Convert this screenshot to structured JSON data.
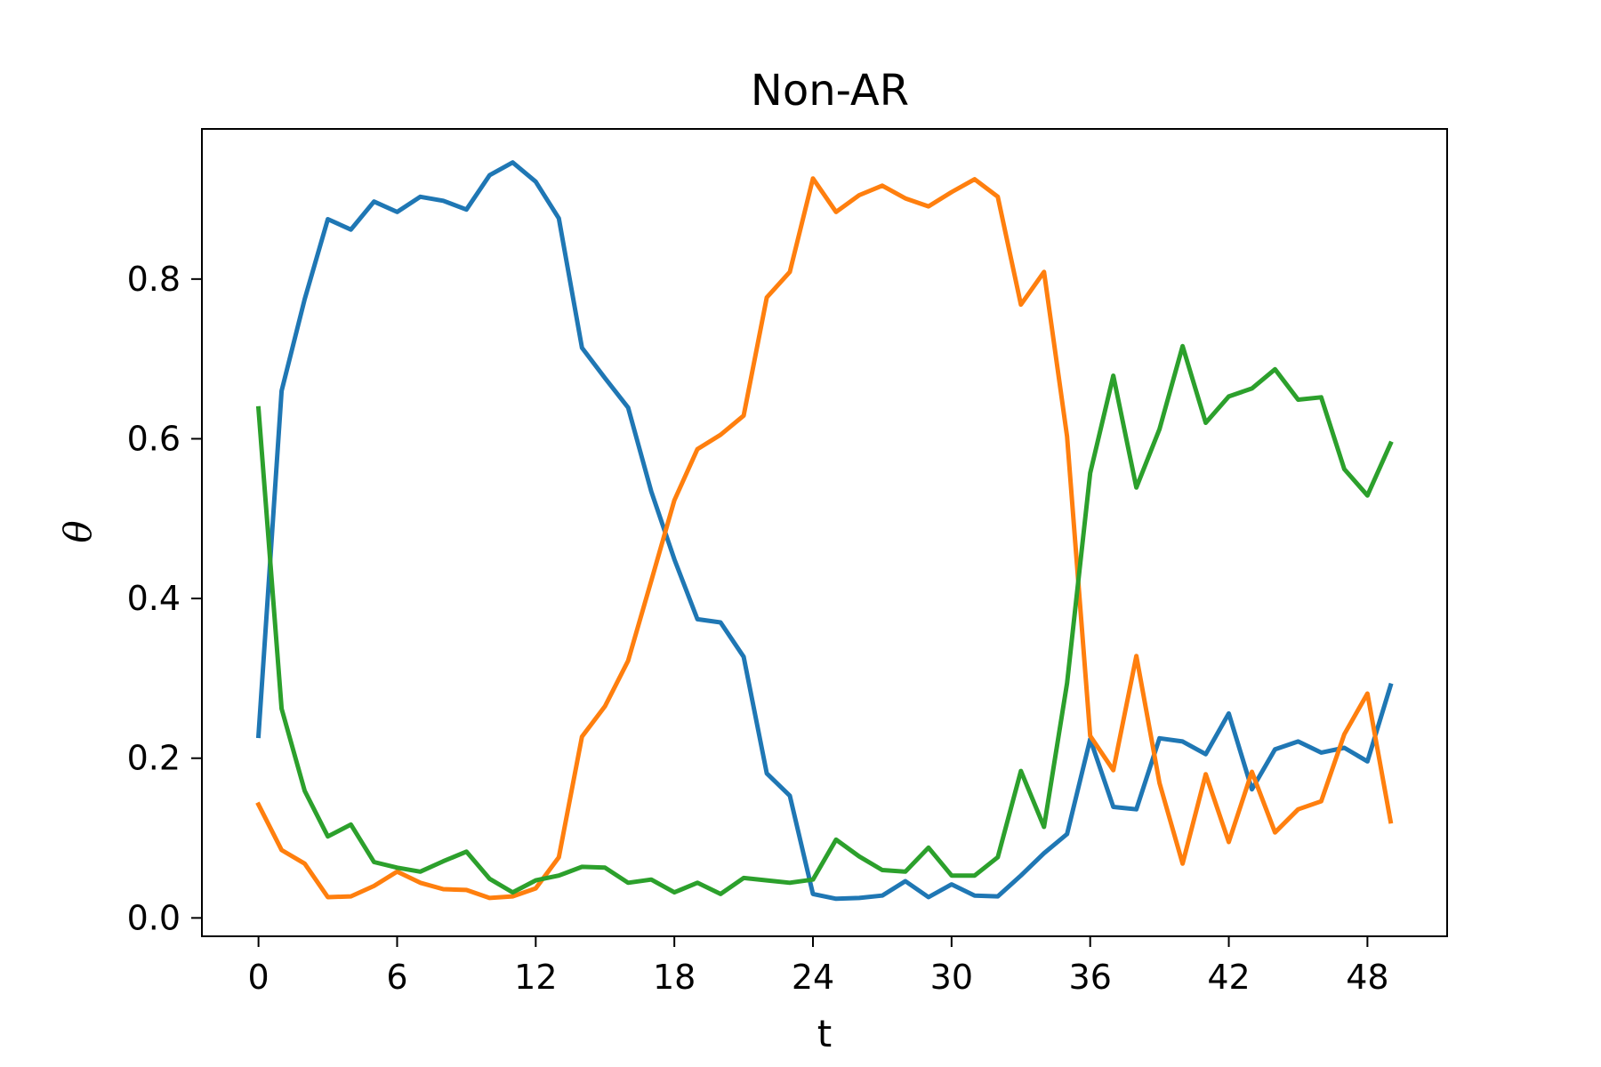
{
  "chart_data": {
    "type": "line",
    "title": "Non-AR",
    "xlabel": "t",
    "ylabel": "θ",
    "xlim": [
      -2.45,
      51.45
    ],
    "ylim": [
      -0.023,
      0.988
    ],
    "xticks": [
      0,
      6,
      12,
      18,
      24,
      30,
      36,
      42,
      48
    ],
    "xtick_labels": [
      "0",
      "6",
      "12",
      "18",
      "24",
      "30",
      "36",
      "42",
      "48"
    ],
    "yticks": [
      0.0,
      0.2,
      0.4,
      0.6,
      0.8
    ],
    "ytick_labels": [
      "0.0",
      "0.2",
      "0.4",
      "0.6",
      "0.8"
    ],
    "grid": false,
    "legend": "none",
    "x": [
      0,
      1,
      2,
      3,
      4,
      5,
      6,
      7,
      8,
      9,
      10,
      11,
      12,
      13,
      14,
      15,
      16,
      17,
      18,
      19,
      20,
      21,
      22,
      23,
      24,
      25,
      26,
      27,
      28,
      29,
      30,
      31,
      32,
      33,
      34,
      35,
      36,
      37,
      38,
      39,
      40,
      41,
      42,
      43,
      44,
      45,
      46,
      47,
      48,
      49
    ],
    "series": [
      {
        "color": "#1f77b4",
        "values": [
          0.228,
          0.66,
          0.775,
          0.875,
          0.862,
          0.897,
          0.884,
          0.903,
          0.898,
          0.887,
          0.93,
          0.946,
          0.922,
          0.876,
          0.714,
          0.676,
          0.639,
          0.534,
          0.449,
          0.374,
          0.37,
          0.327,
          0.181,
          0.153,
          0.03,
          0.024,
          0.025,
          0.028,
          0.046,
          0.026,
          0.042,
          0.028,
          0.027,
          0.053,
          0.081,
          0.105,
          0.224,
          0.139,
          0.136,
          0.225,
          0.221,
          0.205,
          0.256,
          0.161,
          0.211,
          0.221,
          0.207,
          0.213,
          0.196,
          0.291
        ]
      },
      {
        "color": "#ff7f0e",
        "values": [
          0.142,
          0.085,
          0.068,
          0.026,
          0.027,
          0.04,
          0.058,
          0.044,
          0.036,
          0.035,
          0.025,
          0.027,
          0.037,
          0.076,
          0.227,
          0.265,
          0.322,
          0.422,
          0.523,
          0.587,
          0.605,
          0.629,
          0.777,
          0.809,
          0.926,
          0.884,
          0.905,
          0.917,
          0.901,
          0.891,
          0.909,
          0.925,
          0.903,
          0.768,
          0.809,
          0.603,
          0.228,
          0.185,
          0.328,
          0.169,
          0.068,
          0.18,
          0.095,
          0.183,
          0.107,
          0.136,
          0.146,
          0.23,
          0.281,
          0.121
        ]
      },
      {
        "color": "#2ca02c",
        "values": [
          0.638,
          0.262,
          0.159,
          0.102,
          0.117,
          0.07,
          0.063,
          0.058,
          0.071,
          0.083,
          0.049,
          0.032,
          0.047,
          0.053,
          0.064,
          0.063,
          0.044,
          0.048,
          0.032,
          0.044,
          0.03,
          0.05,
          0.047,
          0.044,
          0.048,
          0.098,
          0.077,
          0.06,
          0.058,
          0.088,
          0.053,
          0.053,
          0.076,
          0.184,
          0.114,
          0.294,
          0.557,
          0.679,
          0.539,
          0.612,
          0.716,
          0.62,
          0.653,
          0.663,
          0.687,
          0.649,
          0.652,
          0.562,
          0.529,
          0.594
        ]
      }
    ]
  }
}
